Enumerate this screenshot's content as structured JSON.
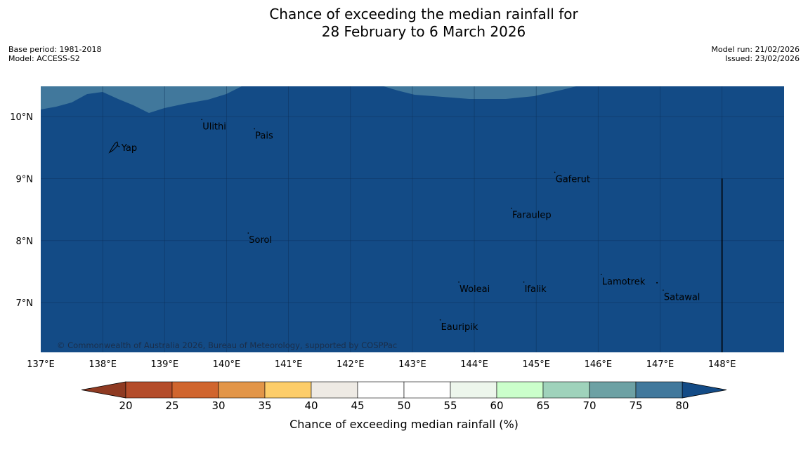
{
  "title": {
    "line1": "Chance of exceeding the median rainfall for",
    "line2": "28 February to 6 March 2026"
  },
  "meta": {
    "base_period": "Base period: 1981-2018",
    "model": "Model: ACCESS-S2",
    "model_run": "Model run: 21/02/2026",
    "issued": "Issued: 23/02/2026"
  },
  "map": {
    "lon_min": 137,
    "lon_max": 149,
    "lat_min": 6.2,
    "lat_max": 10.5,
    "lon_ticks": [
      137,
      138,
      139,
      140,
      141,
      142,
      143,
      144,
      145,
      146,
      147,
      148
    ],
    "lon_labels": [
      "137°E",
      "138°E",
      "139°E",
      "140°E",
      "141°E",
      "142°E",
      "143°E",
      "144°E",
      "145°E",
      "146°E",
      "147°E",
      "148°E"
    ],
    "lat_ticks": [
      10,
      9,
      8,
      7
    ],
    "lat_labels": [
      "10°N",
      "9°N",
      "8°N",
      "7°N"
    ],
    "base_color": "#134b86",
    "upper_band_color": "#41789c",
    "upper_band_value": "75-80%",
    "base_value": ">80%",
    "places": [
      {
        "name": "Yap",
        "lon": 138.2,
        "lat": 9.5
      },
      {
        "name": "Ulithi",
        "lon": 139.6,
        "lat": 9.85
      },
      {
        "name": "Pais",
        "lon": 140.45,
        "lat": 9.7
      },
      {
        "name": "Gaferut",
        "lon": 145.3,
        "lat": 9.0
      },
      {
        "name": "Faraulep",
        "lon": 144.6,
        "lat": 8.42
      },
      {
        "name": "Sorol",
        "lon": 140.35,
        "lat": 8.02
      },
      {
        "name": "Woleai",
        "lon": 143.75,
        "lat": 7.23
      },
      {
        "name": "Ifalik",
        "lon": 144.8,
        "lat": 7.23
      },
      {
        "name": "Lamotrek",
        "lon": 146.05,
        "lat": 7.35
      },
      {
        "name": "Satawal",
        "lon": 147.05,
        "lat": 7.1
      },
      {
        "name": "Eauripik",
        "lon": 143.45,
        "lat": 6.62
      }
    ],
    "copyright": "© Commonwealth of Australia 2026, Bureau of Meteorology, supported by COSPPac"
  },
  "colorbar": {
    "title": "Chance of exceeding median rainfall (%)",
    "ticks": [
      "20",
      "25",
      "30",
      "35",
      "40",
      "45",
      "50",
      "55",
      "60",
      "65",
      "70",
      "75",
      "80"
    ],
    "low_color": "#8f3a22",
    "high_color": "#134b86",
    "colors": [
      "#b44c2a",
      "#d0652e",
      "#e29548",
      "#fdcd69",
      "#eeeae4",
      "#ffffff",
      "#ffffff",
      "#edf6ec",
      "#cbffcb",
      "#9fd2bb",
      "#6da1a4",
      "#41789c"
    ]
  }
}
